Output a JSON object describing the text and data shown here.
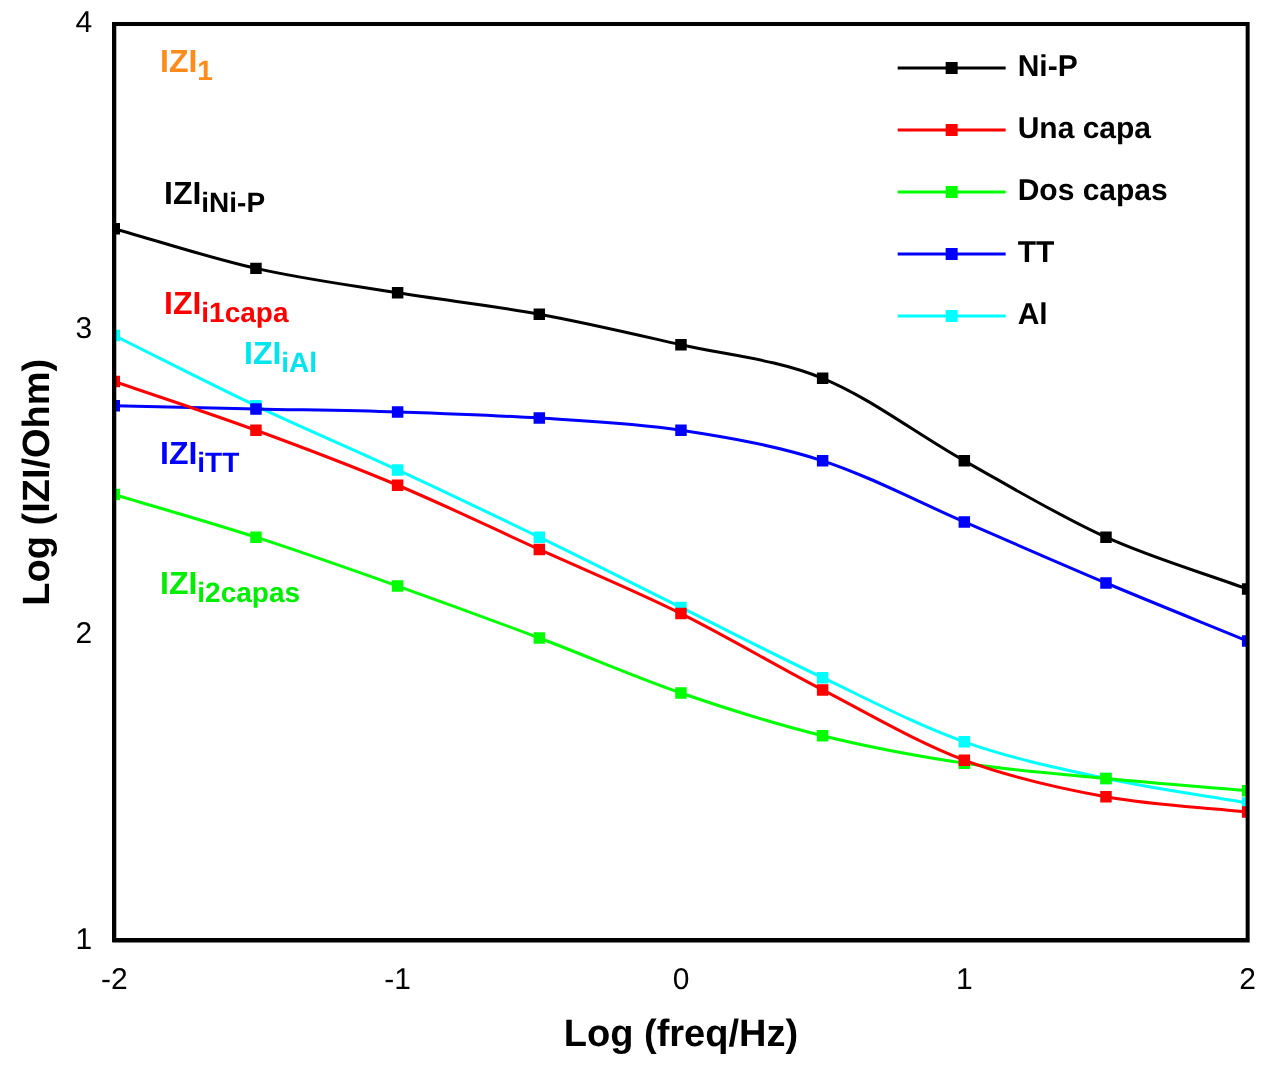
{
  "chart_data": {
    "type": "line",
    "xlabel": "Log (freq/Hz)",
    "ylabel": "Log (IZI/Ohm)",
    "x": [
      -2,
      -1.5,
      -1,
      -0.5,
      0,
      0.5,
      1,
      1.5,
      2
    ],
    "xlim": [
      -2,
      2
    ],
    "xticks": [
      -2,
      -1,
      0,
      1,
      2
    ],
    "ylim": [
      1,
      4
    ],
    "yticks": [
      1,
      2,
      3,
      4
    ],
    "grid": false,
    "legend": "top right",
    "marker": "square",
    "line_style": "solid",
    "series": [
      {
        "name": "Ni-P",
        "color": "#000000",
        "values": [
          3.33,
          3.2,
          3.12,
          3.05,
          2.95,
          2.84,
          2.57,
          2.32,
          2.15
        ]
      },
      {
        "name": "Una capa",
        "color": "#ff0000",
        "values": [
          2.83,
          2.67,
          2.49,
          2.28,
          2.07,
          1.82,
          1.59,
          1.47,
          1.42
        ]
      },
      {
        "name": "Dos capas",
        "color": "#00ff00",
        "values": [
          2.46,
          2.32,
          2.16,
          1.99,
          1.81,
          1.67,
          1.58,
          1.53,
          1.49
        ]
      },
      {
        "name": "TT",
        "color": "#0000ff",
        "values": [
          2.75,
          2.74,
          2.73,
          2.71,
          2.67,
          2.57,
          2.37,
          2.17,
          1.98
        ]
      },
      {
        "name": "Al",
        "color": "#00ffff",
        "values": [
          2.98,
          2.75,
          2.54,
          2.32,
          2.09,
          1.86,
          1.65,
          1.53,
          1.45
        ]
      }
    ],
    "annotations": [
      "IZI$_{1}$",
      "IZI$_{iNi-P}$",
      "IZI$_{i1capa}$",
      "IZI$_{iAl}$",
      "IZI$_{iTT}$",
      "IZI$_{i2capas}$"
    ]
  }
}
